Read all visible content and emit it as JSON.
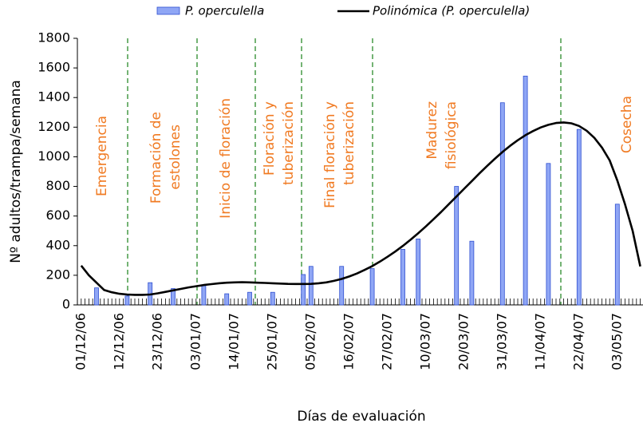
{
  "chart_data": {
    "type": "bar",
    "x_label": "Días de evaluación",
    "y_label": "Nº adultos/trampa/semana",
    "legend": "top",
    "ylim": [
      0,
      1800
    ],
    "yticks": [
      0,
      200,
      400,
      600,
      800,
      1000,
      1200,
      1400,
      1600,
      1800
    ],
    "categories": [
      "01/12/06",
      null,
      null,
      null,
      null,
      "12/12/06",
      null,
      null,
      null,
      null,
      "23/12/06",
      null,
      null,
      null,
      null,
      "03/01/07",
      null,
      null,
      null,
      null,
      "14/01/07",
      null,
      null,
      null,
      null,
      "25/01/07",
      null,
      null,
      null,
      null,
      "05/02/07",
      null,
      null,
      null,
      null,
      "16/02/07",
      null,
      null,
      null,
      null,
      "27/02/07",
      null,
      null,
      null,
      null,
      "10/03/07",
      null,
      null,
      null,
      null,
      "20/03/07",
      null,
      null,
      null,
      null,
      "31/03/07",
      null,
      null,
      null,
      null,
      "11/04/07",
      null,
      null,
      null,
      null,
      "22/04/07",
      null,
      null,
      null,
      null,
      "03/05/07",
      null,
      null,
      null
    ],
    "series": [
      {
        "name": "P. operculella",
        "type": "bar",
        "color": "#8fa6f5",
        "values": [
          null,
          null,
          115,
          null,
          null,
          null,
          60,
          null,
          null,
          150,
          null,
          null,
          110,
          null,
          null,
          null,
          130,
          null,
          null,
          75,
          null,
          null,
          85,
          null,
          null,
          85,
          null,
          null,
          null,
          205,
          260,
          null,
          null,
          null,
          260,
          null,
          null,
          null,
          245,
          null,
          null,
          null,
          375,
          null,
          445,
          null,
          null,
          null,
          null,
          800,
          null,
          430,
          null,
          null,
          null,
          1365,
          null,
          null,
          1545,
          null,
          null,
          955,
          null,
          null,
          null,
          1185,
          null,
          null,
          null,
          null,
          680,
          null,
          null,
          null
        ]
      },
      {
        "name": "Polinómica (P. operculella)",
        "type": "line",
        "color": "#000000",
        "values": [
          265,
          200,
          150,
          100,
          85,
          75,
          70,
          68,
          68,
          70,
          78,
          88,
          98,
          108,
          118,
          126,
          134,
          140,
          146,
          150,
          152,
          153,
          152,
          150,
          148,
          146,
          144,
          142,
          141,
          141,
          142,
          146,
          152,
          162,
          175,
          192,
          212,
          236,
          262,
          292,
          325,
          360,
          398,
          440,
          484,
          530,
          578,
          628,
          680,
          732,
          784,
          836,
          888,
          938,
          986,
          1032,
          1074,
          1112,
          1146,
          1174,
          1198,
          1216,
          1228,
          1232,
          1226,
          1208,
          1176,
          1128,
          1062,
          976,
          840,
          680,
          500,
          260
        ]
      }
    ],
    "annotations": [
      {
        "lines": [
          "Emergencia"
        ]
      },
      {
        "lines": [
          "Formación de",
          "estolones"
        ]
      },
      {
        "lines": [
          "Inicio de floración"
        ]
      },
      {
        "lines": [
          "Floración y",
          "tuberización"
        ]
      },
      {
        "lines": [
          "Final floración y",
          "tuberización"
        ]
      },
      {
        "lines": [
          "Madurez",
          "fisiológica"
        ]
      },
      {
        "lines": [
          "Cosecha"
        ]
      }
    ]
  }
}
